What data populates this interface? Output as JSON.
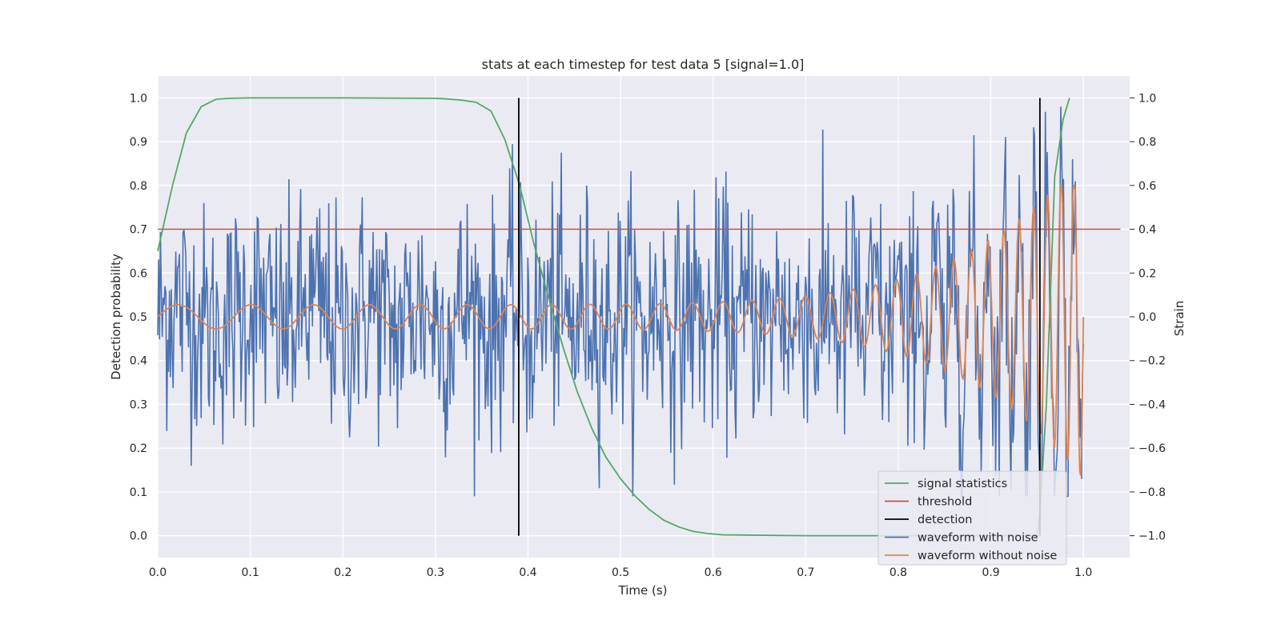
{
  "chart_data": {
    "type": "line",
    "title": "stats at each timestep for test data 5 [signal=1.0]",
    "xlabel": "Time (s)",
    "ylabel": "Detection probability",
    "y2label": "Strain",
    "xlim": [
      0.0,
      1.05
    ],
    "ylim": [
      -0.05,
      1.05
    ],
    "y2lim": [
      -1.1,
      1.1
    ],
    "xticks": [
      "0.0",
      "0.1",
      "0.2",
      "0.3",
      "0.4",
      "0.5",
      "0.6",
      "0.7",
      "0.8",
      "0.9",
      "1.0"
    ],
    "yticks": [
      "0.0",
      "0.1",
      "0.2",
      "0.3",
      "0.4",
      "0.5",
      "0.6",
      "0.7",
      "0.8",
      "0.9",
      "1.0"
    ],
    "y2ticks": [
      "−1.0",
      "−0.8",
      "−0.6",
      "−0.4",
      "−0.2",
      "0.0",
      "0.2",
      "0.4",
      "0.6",
      "0.8",
      "1.0"
    ],
    "grid": true,
    "legend_position": "lower-right",
    "colors": {
      "signal": "#55a868",
      "threshold": "#c44e52",
      "detection": "#000000",
      "noisy": "#4c72b0",
      "clean": "#dd8452",
      "background": "#eaeaf2"
    },
    "series": [
      {
        "name": "signal statistics",
        "axis": "left",
        "x": [
          0.0,
          0.016,
          0.031,
          0.047,
          0.063,
          0.078,
          0.1,
          0.2,
          0.3,
          0.31,
          0.328,
          0.344,
          0.36,
          0.375,
          0.391,
          0.406,
          0.422,
          0.438,
          0.453,
          0.469,
          0.484,
          0.5,
          0.516,
          0.531,
          0.547,
          0.563,
          0.578,
          0.594,
          0.61,
          0.7,
          0.8,
          0.9,
          0.95,
          0.953,
          0.96,
          0.969,
          0.978,
          0.985
        ],
        "y": [
          0.65,
          0.8,
          0.92,
          0.98,
          0.997,
          0.999,
          1.0,
          1.0,
          0.999,
          0.998,
          0.995,
          0.99,
          0.97,
          0.905,
          0.8,
          0.67,
          0.545,
          0.43,
          0.33,
          0.245,
          0.18,
          0.13,
          0.09,
          0.06,
          0.035,
          0.02,
          0.01,
          0.005,
          0.002,
          0.0,
          0.0,
          0.0,
          0.0,
          0.05,
          0.3,
          0.82,
          0.95,
          1.0
        ]
      },
      {
        "name": "threshold",
        "axis": "left",
        "x": [
          0.0,
          1.04
        ],
        "y": [
          0.7,
          0.7
        ]
      },
      {
        "name": "detection",
        "axis": "left",
        "x": [
          0.39,
          0.953
        ],
        "y": [
          0.0,
          1.0
        ]
      },
      {
        "name": "waveform with noise",
        "axis": "right",
        "x_range": [
          0.0,
          1.0
        ],
        "n_points": 1024,
        "y_range": [
          -0.82,
          0.96
        ]
      },
      {
        "name": "waveform without noise",
        "axis": "right",
        "x_range": [
          0.0,
          1.0
        ],
        "n_points": 1024,
        "y_range": [
          -0.75,
          0.6
        ]
      }
    ]
  }
}
